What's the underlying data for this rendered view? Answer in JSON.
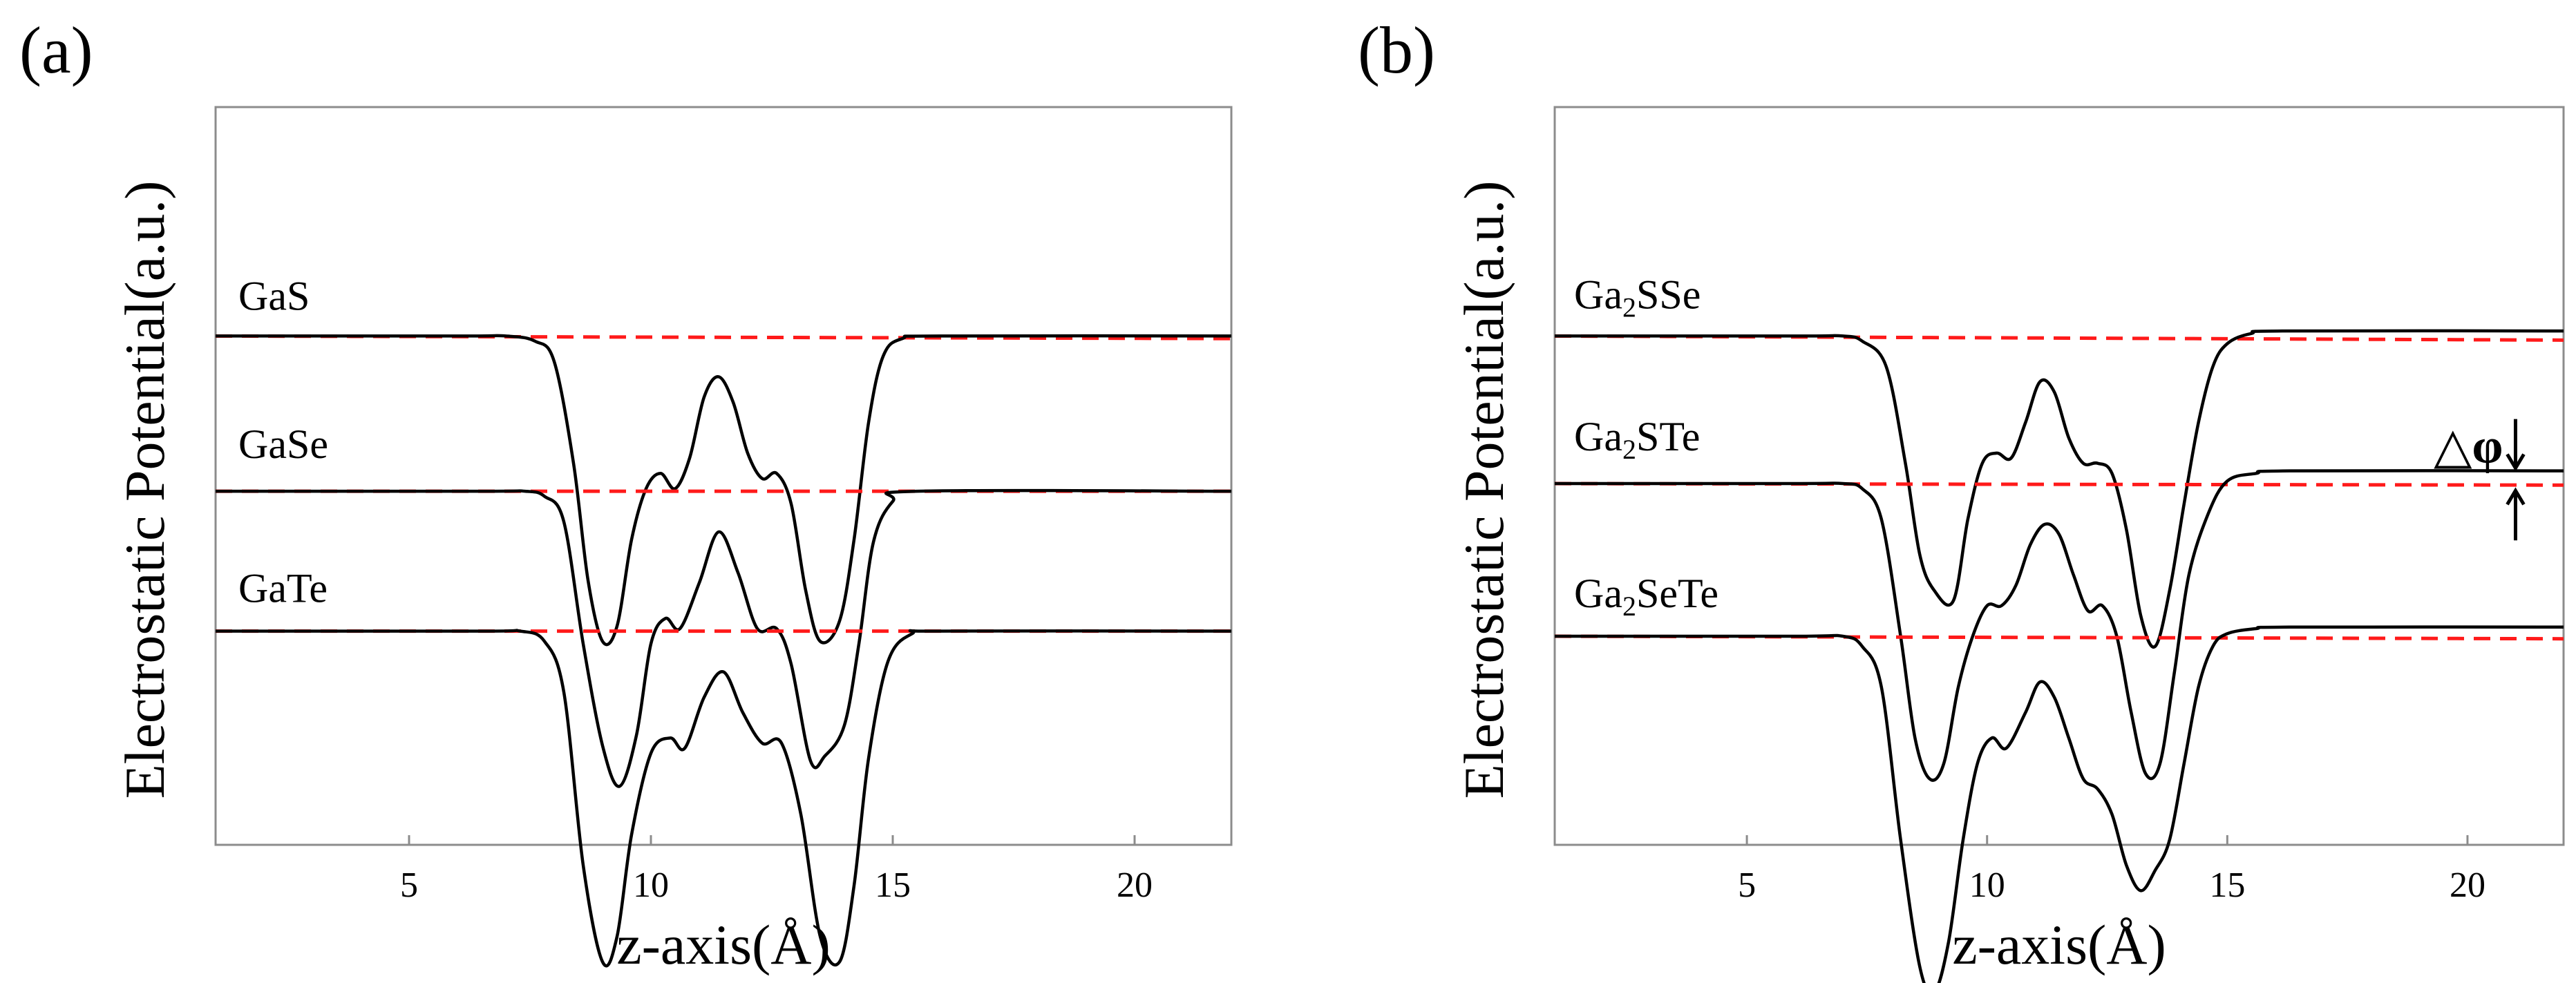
{
  "chart_data": [
    {
      "type": "line",
      "panel_label": "(a)",
      "xlabel": "z-axis(Å)",
      "ylabel": "Electrostatic Potential(a.u.)",
      "xlim": [
        1,
        22
      ],
      "ylim": [
        -1,
        0.45
      ],
      "xticks": [
        5,
        10,
        15,
        20
      ],
      "xtick_labels": [
        "5",
        "10",
        "15",
        "20"
      ],
      "yticks_shown": false,
      "grid": false,
      "series": [
        {
          "name": "GaS",
          "label_parts": [
            {
              "t": "GaS",
              "sub": false
            }
          ],
          "offset": 0.0,
          "vacuum_left": 0.0,
          "vacuum_right": 0.0,
          "ref_right": -0.005,
          "points": [
            [
              1,
              0
            ],
            [
              6,
              0
            ],
            [
              7,
              0
            ],
            [
              7.6,
              -0.01
            ],
            [
              8,
              -0.05
            ],
            [
              8.4,
              -0.25
            ],
            [
              8.7,
              -0.48
            ],
            [
              9.0,
              -0.6
            ],
            [
              9.3,
              -0.57
            ],
            [
              9.6,
              -0.4
            ],
            [
              9.9,
              -0.3
            ],
            [
              10.2,
              -0.27
            ],
            [
              10.5,
              -0.3
            ],
            [
              10.8,
              -0.24
            ],
            [
              11.1,
              -0.12
            ],
            [
              11.4,
              -0.08
            ],
            [
              11.7,
              -0.13
            ],
            [
              12.0,
              -0.23
            ],
            [
              12.3,
              -0.28
            ],
            [
              12.6,
              -0.27
            ],
            [
              12.9,
              -0.33
            ],
            [
              13.2,
              -0.5
            ],
            [
              13.5,
              -0.6
            ],
            [
              13.9,
              -0.56
            ],
            [
              14.2,
              -0.4
            ],
            [
              14.5,
              -0.17
            ],
            [
              14.8,
              -0.04
            ],
            [
              15.2,
              -0.005
            ],
            [
              16,
              0
            ],
            [
              22,
              0
            ]
          ]
        },
        {
          "name": "GaSe",
          "label_parts": [
            {
              "t": "GaSe",
              "sub": false
            }
          ],
          "offset": -0.305,
          "vacuum_left": 0.0,
          "vacuum_right": 0.0,
          "ref_right": 0.0,
          "points": [
            [
              1,
              0
            ],
            [
              6.5,
              0
            ],
            [
              7.4,
              0
            ],
            [
              7.8,
              -0.01
            ],
            [
              8.2,
              -0.06
            ],
            [
              8.6,
              -0.3
            ],
            [
              9.0,
              -0.5
            ],
            [
              9.35,
              -0.58
            ],
            [
              9.7,
              -0.48
            ],
            [
              10.0,
              -0.3
            ],
            [
              10.3,
              -0.25
            ],
            [
              10.6,
              -0.27
            ],
            [
              11.0,
              -0.18
            ],
            [
              11.4,
              -0.08
            ],
            [
              11.8,
              -0.16
            ],
            [
              12.2,
              -0.27
            ],
            [
              12.6,
              -0.27
            ],
            [
              12.9,
              -0.34
            ],
            [
              13.3,
              -0.53
            ],
            [
              13.6,
              -0.52
            ],
            [
              14.0,
              -0.46
            ],
            [
              14.3,
              -0.3
            ],
            [
              14.6,
              -0.1
            ],
            [
              15.0,
              -0.02
            ],
            [
              15.5,
              0
            ],
            [
              22,
              0
            ]
          ]
        },
        {
          "name": "GaTe",
          "label_parts": [
            {
              "t": "GaTe",
              "sub": false
            }
          ],
          "offset": -0.58,
          "vacuum_left": 0.0,
          "vacuum_right": 0.0,
          "ref_right": 0.0,
          "points": [
            [
              1,
              0
            ],
            [
              6.5,
              0
            ],
            [
              7.3,
              0
            ],
            [
              7.8,
              -0.02
            ],
            [
              8.2,
              -0.12
            ],
            [
              8.6,
              -0.46
            ],
            [
              9.0,
              -0.65
            ],
            [
              9.3,
              -0.6
            ],
            [
              9.6,
              -0.4
            ],
            [
              10.0,
              -0.24
            ],
            [
              10.4,
              -0.21
            ],
            [
              10.7,
              -0.23
            ],
            [
              11.1,
              -0.13
            ],
            [
              11.5,
              -0.08
            ],
            [
              11.9,
              -0.16
            ],
            [
              12.3,
              -0.22
            ],
            [
              12.7,
              -0.22
            ],
            [
              13.1,
              -0.36
            ],
            [
              13.5,
              -0.6
            ],
            [
              13.9,
              -0.65
            ],
            [
              14.2,
              -0.5
            ],
            [
              14.5,
              -0.25
            ],
            [
              14.9,
              -0.06
            ],
            [
              15.4,
              -0.005
            ],
            [
              16,
              0
            ],
            [
              22,
              0
            ]
          ]
        }
      ]
    },
    {
      "type": "line",
      "panel_label": "(b)",
      "xlabel": "z-axis(Å)",
      "ylabel": "Electrostatic Potential(a.u.)",
      "xlim": [
        1,
        22
      ],
      "ylim": [
        -1,
        0.45
      ],
      "xticks": [
        5,
        10,
        15,
        20
      ],
      "xtick_labels": [
        "5",
        "10",
        "15",
        "20"
      ],
      "yticks_shown": false,
      "grid": false,
      "annotation": {
        "text": "△φ",
        "x": 21,
        "meaning": "vacuum level difference of Ga2STe"
      },
      "series": [
        {
          "name": "Ga2SSe",
          "label_parts": [
            {
              "t": "Ga",
              "sub": false
            },
            {
              "t": "2",
              "sub": true
            },
            {
              "t": "SSe",
              "sub": false
            }
          ],
          "offset": 0.0,
          "vacuum_left": 0.0,
          "vacuum_right": 0.01,
          "ref_right": -0.008,
          "points": [
            [
              1,
              0
            ],
            [
              6,
              0
            ],
            [
              7,
              0
            ],
            [
              7.4,
              -0.01
            ],
            [
              7.9,
              -0.06
            ],
            [
              8.3,
              -0.25
            ],
            [
              8.6,
              -0.43
            ],
            [
              8.9,
              -0.5
            ],
            [
              9.3,
              -0.52
            ],
            [
              9.6,
              -0.36
            ],
            [
              9.9,
              -0.25
            ],
            [
              10.2,
              -0.23
            ],
            [
              10.5,
              -0.24
            ],
            [
              10.8,
              -0.17
            ],
            [
              11.1,
              -0.09
            ],
            [
              11.4,
              -0.11
            ],
            [
              11.7,
              -0.2
            ],
            [
              12.0,
              -0.25
            ],
            [
              12.3,
              -0.25
            ],
            [
              12.6,
              -0.27
            ],
            [
              12.9,
              -0.38
            ],
            [
              13.2,
              -0.55
            ],
            [
              13.5,
              -0.61
            ],
            [
              13.8,
              -0.5
            ],
            [
              14.1,
              -0.33
            ],
            [
              14.4,
              -0.17
            ],
            [
              14.7,
              -0.06
            ],
            [
              15.0,
              -0.015
            ],
            [
              15.5,
              0.005
            ],
            [
              16.2,
              0.01
            ],
            [
              22,
              0.01
            ]
          ]
        },
        {
          "name": "Ga2STe",
          "label_parts": [
            {
              "t": "Ga",
              "sub": false
            },
            {
              "t": "2",
              "sub": true
            },
            {
              "t": "STe",
              "sub": false
            }
          ],
          "offset": -0.29,
          "vacuum_left": 0.0,
          "vacuum_right": 0.025,
          "ref_right": -0.003,
          "points": [
            [
              1,
              0
            ],
            [
              6,
              0
            ],
            [
              7,
              0
            ],
            [
              7.4,
              -0.01
            ],
            [
              7.8,
              -0.07
            ],
            [
              8.2,
              -0.3
            ],
            [
              8.5,
              -0.5
            ],
            [
              8.8,
              -0.58
            ],
            [
              9.1,
              -0.55
            ],
            [
              9.4,
              -0.4
            ],
            [
              9.7,
              -0.3
            ],
            [
              10.0,
              -0.24
            ],
            [
              10.3,
              -0.24
            ],
            [
              10.6,
              -0.2
            ],
            [
              10.9,
              -0.12
            ],
            [
              11.2,
              -0.08
            ],
            [
              11.5,
              -0.1
            ],
            [
              11.8,
              -0.18
            ],
            [
              12.1,
              -0.25
            ],
            [
              12.4,
              -0.24
            ],
            [
              12.7,
              -0.3
            ],
            [
              13.0,
              -0.45
            ],
            [
              13.3,
              -0.57
            ],
            [
              13.6,
              -0.55
            ],
            [
              13.9,
              -0.37
            ],
            [
              14.2,
              -0.18
            ],
            [
              14.6,
              -0.06
            ],
            [
              15.0,
              0.005
            ],
            [
              15.6,
              0.02
            ],
            [
              16.3,
              0.025
            ],
            [
              22,
              0.025
            ]
          ]
        },
        {
          "name": "Ga2SeTe",
          "label_parts": [
            {
              "t": "Ga",
              "sub": false
            },
            {
              "t": "2",
              "sub": true
            },
            {
              "t": "SeTe",
              "sub": false
            }
          ],
          "offset": -0.59,
          "vacuum_left": 0.0,
          "vacuum_right": 0.018,
          "ref_right": -0.005,
          "points": [
            [
              1,
              0
            ],
            [
              6,
              0
            ],
            [
              7,
              0
            ],
            [
              7.4,
              -0.02
            ],
            [
              7.8,
              -0.1
            ],
            [
              8.2,
              -0.4
            ],
            [
              8.6,
              -0.65
            ],
            [
              8.9,
              -0.7
            ],
            [
              9.2,
              -0.6
            ],
            [
              9.5,
              -0.4
            ],
            [
              9.8,
              -0.25
            ],
            [
              10.1,
              -0.2
            ],
            [
              10.4,
              -0.22
            ],
            [
              10.8,
              -0.15
            ],
            [
              11.1,
              -0.09
            ],
            [
              11.4,
              -0.12
            ],
            [
              11.7,
              -0.2
            ],
            [
              12.0,
              -0.28
            ],
            [
              12.3,
              -0.3
            ],
            [
              12.6,
              -0.35
            ],
            [
              12.9,
              -0.45
            ],
            [
              13.2,
              -0.5
            ],
            [
              13.5,
              -0.46
            ],
            [
              13.8,
              -0.4
            ],
            [
              14.1,
              -0.25
            ],
            [
              14.4,
              -0.1
            ],
            [
              14.7,
              -0.02
            ],
            [
              15.0,
              0.005
            ],
            [
              15.6,
              0.015
            ],
            [
              16.3,
              0.018
            ],
            [
              22,
              0.018
            ]
          ]
        }
      ]
    }
  ]
}
